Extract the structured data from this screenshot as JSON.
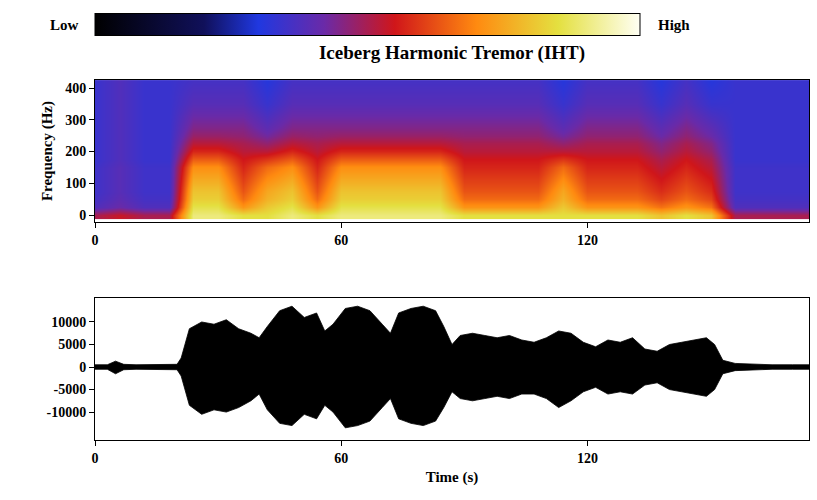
{
  "chart_data": [
    {
      "type": "heatmap",
      "title": "Iceberg Harmonic Tremor (IHT)",
      "ylabel": "Frequency (Hz)",
      "x": [
        0,
        6,
        12,
        18,
        24,
        30,
        36,
        42,
        48,
        54,
        60,
        66,
        72,
        78,
        84,
        90,
        96,
        102,
        108,
        114,
        120,
        126,
        132,
        138,
        144,
        150,
        156,
        162,
        168,
        174
      ],
      "y": [
        0,
        25,
        50,
        75,
        100,
        125,
        150,
        175,
        200,
        225,
        250,
        275,
        300,
        325,
        350,
        375,
        400,
        425
      ],
      "cells": [
        [
          0.5,
          0.54,
          0.5,
          0.5,
          0.9,
          0.9,
          0.85,
          0.85,
          0.9,
          0.85,
          0.9,
          0.9,
          0.9,
          0.9,
          0.9,
          0.85,
          0.85,
          0.85,
          0.85,
          0.85,
          0.85,
          0.85,
          0.85,
          0.8,
          0.85,
          0.8,
          0.5,
          0.5,
          0.5,
          0.5
        ],
        [
          0.38,
          0.42,
          0.38,
          0.38,
          0.86,
          0.86,
          0.72,
          0.81,
          0.86,
          0.72,
          0.86,
          0.86,
          0.86,
          0.86,
          0.86,
          0.72,
          0.72,
          0.72,
          0.72,
          0.81,
          0.72,
          0.72,
          0.72,
          0.67,
          0.72,
          0.67,
          0.38,
          0.38,
          0.38,
          0.38
        ],
        [
          0.36,
          0.4,
          0.36,
          0.36,
          0.82,
          0.82,
          0.66,
          0.77,
          0.82,
          0.66,
          0.82,
          0.82,
          0.82,
          0.82,
          0.82,
          0.66,
          0.66,
          0.66,
          0.66,
          0.77,
          0.66,
          0.66,
          0.66,
          0.61,
          0.66,
          0.61,
          0.36,
          0.36,
          0.36,
          0.36
        ],
        [
          0.35,
          0.39,
          0.35,
          0.35,
          0.8,
          0.8,
          0.63,
          0.75,
          0.8,
          0.63,
          0.8,
          0.8,
          0.8,
          0.8,
          0.8,
          0.63,
          0.63,
          0.63,
          0.63,
          0.75,
          0.63,
          0.63,
          0.63,
          0.58,
          0.63,
          0.58,
          0.35,
          0.35,
          0.35,
          0.35
        ],
        [
          0.35,
          0.39,
          0.35,
          0.35,
          0.77,
          0.77,
          0.61,
          0.72,
          0.77,
          0.61,
          0.77,
          0.77,
          0.77,
          0.77,
          0.77,
          0.61,
          0.61,
          0.61,
          0.61,
          0.72,
          0.61,
          0.61,
          0.61,
          0.56,
          0.61,
          0.56,
          0.35,
          0.35,
          0.35,
          0.35
        ],
        [
          0.35,
          0.39,
          0.35,
          0.35,
          0.74,
          0.74,
          0.59,
          0.69,
          0.74,
          0.59,
          0.74,
          0.74,
          0.74,
          0.74,
          0.74,
          0.59,
          0.59,
          0.59,
          0.59,
          0.69,
          0.59,
          0.59,
          0.59,
          0.54,
          0.59,
          0.54,
          0.35,
          0.35,
          0.35,
          0.35
        ],
        [
          0.35,
          0.39,
          0.35,
          0.35,
          0.71,
          0.71,
          0.57,
          0.66,
          0.71,
          0.57,
          0.71,
          0.71,
          0.71,
          0.71,
          0.71,
          0.57,
          0.57,
          0.57,
          0.57,
          0.66,
          0.57,
          0.57,
          0.57,
          0.52,
          0.57,
          0.52,
          0.35,
          0.35,
          0.35,
          0.35
        ],
        [
          0.34,
          0.38,
          0.34,
          0.34,
          0.64,
          0.64,
          0.55,
          0.59,
          0.64,
          0.55,
          0.64,
          0.64,
          0.64,
          0.64,
          0.64,
          0.55,
          0.55,
          0.55,
          0.55,
          0.59,
          0.55,
          0.55,
          0.55,
          0.5,
          0.55,
          0.5,
          0.34,
          0.34,
          0.34,
          0.34
        ],
        [
          0.34,
          0.38,
          0.34,
          0.34,
          0.57,
          0.57,
          0.52,
          0.52,
          0.57,
          0.52,
          0.57,
          0.57,
          0.57,
          0.57,
          0.57,
          0.52,
          0.52,
          0.52,
          0.52,
          0.52,
          0.52,
          0.52,
          0.52,
          0.47,
          0.52,
          0.47,
          0.34,
          0.34,
          0.34,
          0.34
        ],
        [
          0.34,
          0.38,
          0.34,
          0.34,
          0.52,
          0.52,
          0.5,
          0.47,
          0.52,
          0.5,
          0.52,
          0.52,
          0.52,
          0.52,
          0.52,
          0.5,
          0.5,
          0.5,
          0.5,
          0.47,
          0.5,
          0.5,
          0.5,
          0.45,
          0.5,
          0.45,
          0.34,
          0.34,
          0.34,
          0.34
        ],
        [
          0.34,
          0.38,
          0.34,
          0.34,
          0.48,
          0.48,
          0.47,
          0.43,
          0.48,
          0.47,
          0.48,
          0.48,
          0.48,
          0.48,
          0.48,
          0.47,
          0.47,
          0.47,
          0.47,
          0.43,
          0.47,
          0.47,
          0.47,
          0.42,
          0.47,
          0.42,
          0.34,
          0.34,
          0.34,
          0.34
        ],
        [
          0.34,
          0.38,
          0.34,
          0.34,
          0.45,
          0.45,
          0.45,
          0.4,
          0.45,
          0.45,
          0.45,
          0.45,
          0.45,
          0.45,
          0.45,
          0.45,
          0.45,
          0.45,
          0.45,
          0.4,
          0.45,
          0.45,
          0.45,
          0.4,
          0.45,
          0.4,
          0.34,
          0.34,
          0.34,
          0.34
        ],
        [
          0.34,
          0.38,
          0.34,
          0.34,
          0.43,
          0.43,
          0.43,
          0.38,
          0.43,
          0.43,
          0.43,
          0.43,
          0.43,
          0.43,
          0.43,
          0.43,
          0.43,
          0.43,
          0.43,
          0.38,
          0.43,
          0.43,
          0.43,
          0.38,
          0.43,
          0.38,
          0.34,
          0.34,
          0.34,
          0.34
        ],
        [
          0.34,
          0.38,
          0.34,
          0.34,
          0.41,
          0.41,
          0.41,
          0.36,
          0.41,
          0.41,
          0.41,
          0.41,
          0.41,
          0.41,
          0.41,
          0.41,
          0.41,
          0.41,
          0.41,
          0.36,
          0.41,
          0.41,
          0.41,
          0.36,
          0.41,
          0.36,
          0.34,
          0.34,
          0.34,
          0.34
        ],
        [
          0.34,
          0.38,
          0.34,
          0.34,
          0.39,
          0.39,
          0.39,
          0.34,
          0.39,
          0.39,
          0.39,
          0.39,
          0.39,
          0.39,
          0.39,
          0.39,
          0.39,
          0.39,
          0.39,
          0.34,
          0.39,
          0.39,
          0.39,
          0.34,
          0.39,
          0.34,
          0.34,
          0.34,
          0.34,
          0.34
        ],
        [
          0.34,
          0.38,
          0.34,
          0.34,
          0.38,
          0.38,
          0.38,
          0.33,
          0.38,
          0.38,
          0.38,
          0.38,
          0.38,
          0.38,
          0.38,
          0.38,
          0.38,
          0.38,
          0.38,
          0.33,
          0.38,
          0.38,
          0.38,
          0.33,
          0.38,
          0.33,
          0.34,
          0.34,
          0.34,
          0.34
        ],
        [
          0.34,
          0.38,
          0.34,
          0.34,
          0.37,
          0.37,
          0.37,
          0.32,
          0.37,
          0.37,
          0.37,
          0.37,
          0.37,
          0.37,
          0.37,
          0.37,
          0.37,
          0.37,
          0.37,
          0.32,
          0.37,
          0.37,
          0.37,
          0.32,
          0.37,
          0.32,
          0.34,
          0.34,
          0.34,
          0.34
        ],
        [
          0.34,
          0.38,
          0.34,
          0.34,
          0.36,
          0.36,
          0.36,
          0.31,
          0.36,
          0.36,
          0.36,
          0.36,
          0.36,
          0.36,
          0.36,
          0.36,
          0.36,
          0.36,
          0.36,
          0.31,
          0.36,
          0.36,
          0.36,
          0.31,
          0.36,
          0.31,
          0.34,
          0.34,
          0.34,
          0.34
        ]
      ],
      "colorbar": {
        "range": [
          0,
          1
        ],
        "ticks": [
          {
            "value": 0,
            "label": "Low"
          },
          {
            "value": 1,
            "label": "High"
          }
        ]
      },
      "xlim": [
        0,
        174
      ],
      "xticks": [
        0,
        60,
        120
      ],
      "ylim": [
        -22,
        425
      ],
      "yticks": [
        0,
        100,
        200,
        300,
        400
      ]
    },
    {
      "type": "area",
      "xlabel": "Time (s)",
      "color": "#000000",
      "x": [
        0,
        3,
        5,
        7,
        10,
        15,
        20,
        21,
        23,
        26,
        29,
        32,
        35,
        38,
        40,
        42,
        45,
        48,
        51,
        54,
        56,
        58,
        61,
        64,
        67,
        70,
        72,
        74,
        77,
        80,
        83,
        85,
        87,
        89,
        92,
        95,
        98,
        101,
        104,
        107,
        110,
        113,
        116,
        119,
        122,
        125,
        128,
        131,
        134,
        137,
        140,
        143,
        146,
        149,
        151,
        153,
        156,
        160,
        165,
        170,
        174
      ],
      "upper": [
        500,
        500,
        1300,
        600,
        500,
        500,
        600,
        2000,
        8500,
        10000,
        9500,
        10500,
        8500,
        7500,
        6500,
        9000,
        12500,
        13500,
        11000,
        12000,
        8000,
        9500,
        13000,
        13500,
        12500,
        9500,
        7500,
        12000,
        13000,
        13500,
        12500,
        9000,
        5000,
        7000,
        7500,
        7000,
        6500,
        7000,
        6000,
        5500,
        6500,
        8000,
        7500,
        5500,
        4500,
        6000,
        5500,
        6500,
        4000,
        3500,
        5000,
        5500,
        6000,
        6500,
        5000,
        1500,
        800,
        600,
        500,
        500,
        500
      ],
      "lower": [
        -500,
        -500,
        -1500,
        -600,
        -500,
        -500,
        -600,
        -2000,
        -8500,
        -10500,
        -9500,
        -10000,
        -9000,
        -7500,
        -6000,
        -9500,
        -12500,
        -13000,
        -10500,
        -11500,
        -8500,
        -10000,
        -13500,
        -13000,
        -12000,
        -9000,
        -7000,
        -11500,
        -12500,
        -13000,
        -12000,
        -9000,
        -5500,
        -7000,
        -7500,
        -7000,
        -6500,
        -7000,
        -6000,
        -6000,
        -7000,
        -9000,
        -7500,
        -5500,
        -4500,
        -6000,
        -5500,
        -6000,
        -4000,
        -3500,
        -5000,
        -5500,
        -6000,
        -6500,
        -5000,
        -1500,
        -800,
        -600,
        -500,
        -500,
        -500
      ],
      "xlim": [
        0,
        174
      ],
      "xticks": [
        0,
        60,
        120
      ],
      "ylim": [
        -16200,
        15300
      ],
      "yticks": [
        -10000,
        -5000,
        0,
        5000,
        10000
      ]
    }
  ]
}
